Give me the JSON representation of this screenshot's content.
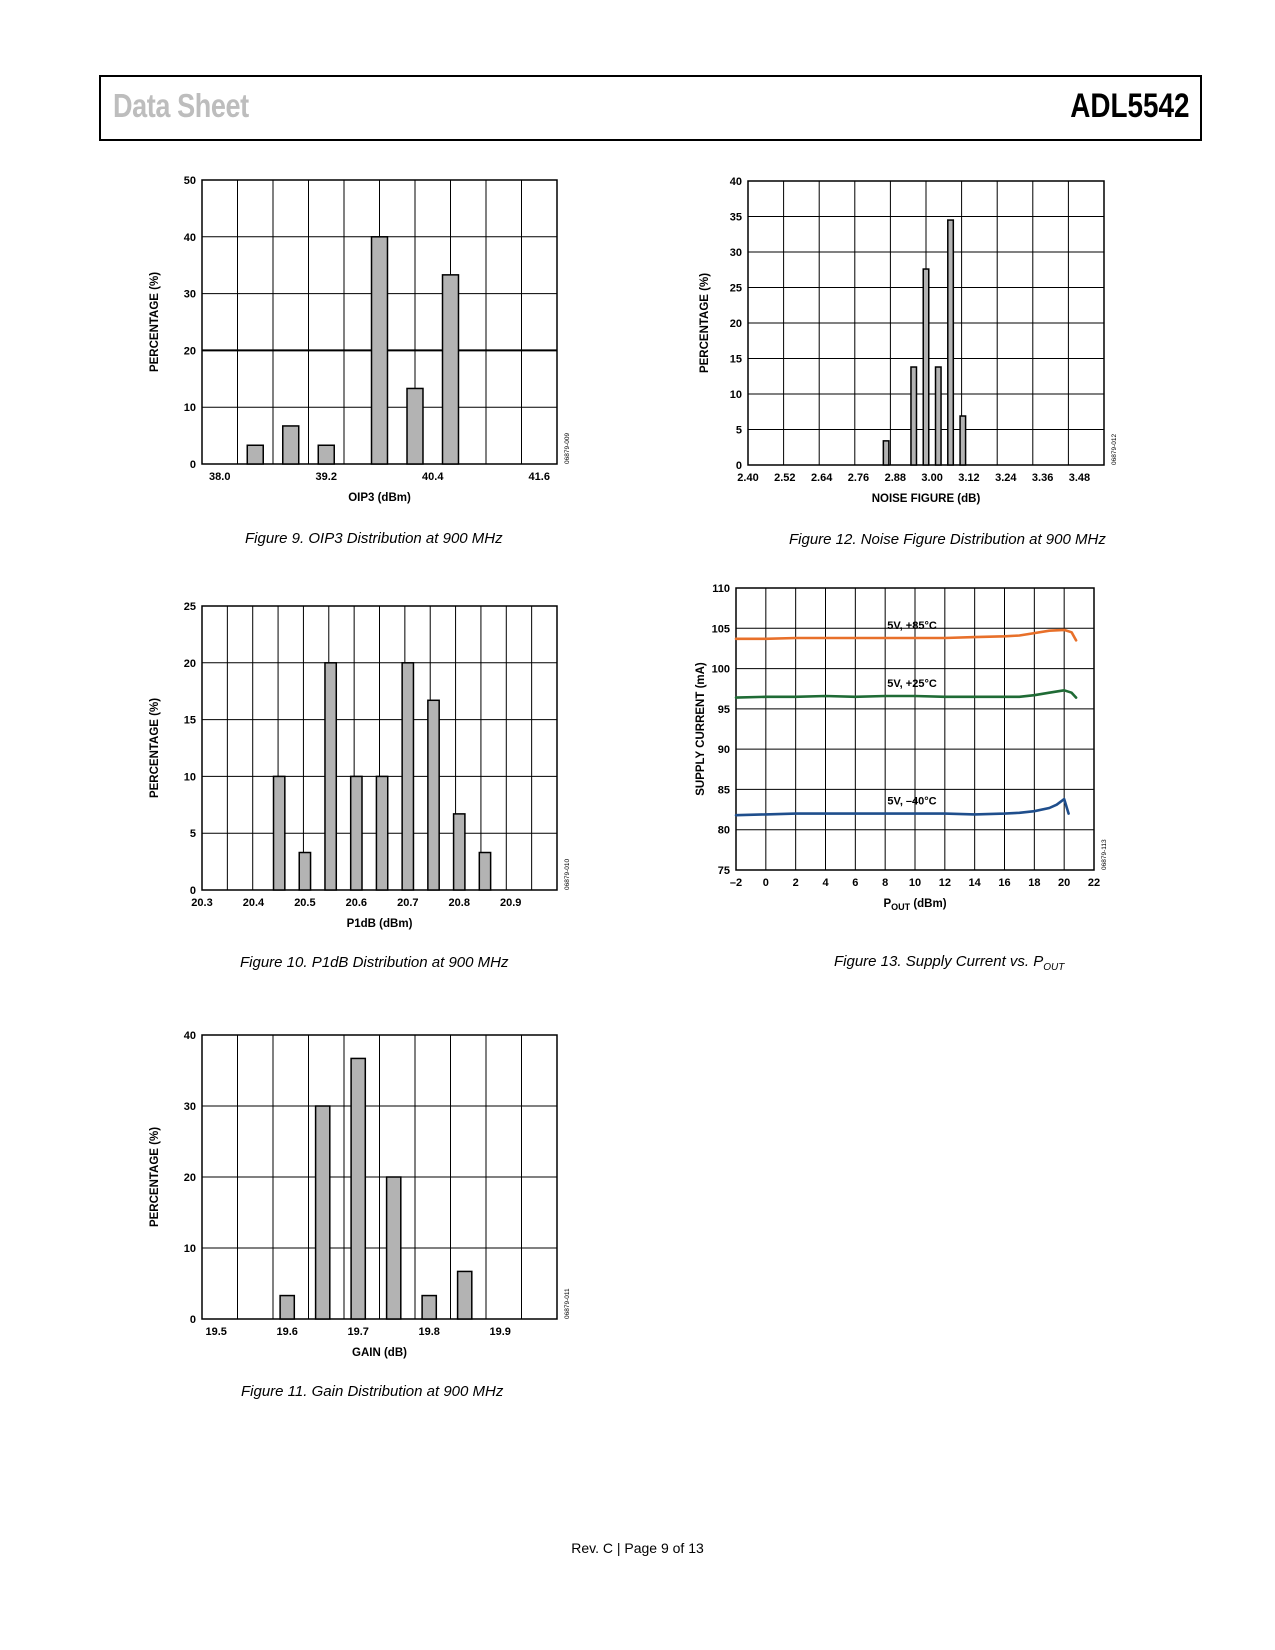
{
  "header": {
    "left_title": "Data Sheet",
    "right_title": "ADL5542"
  },
  "footer": {
    "text": "Rev. C | Page 9 of 13"
  },
  "figures": [
    {
      "caption_prefix": "Figure 9.",
      "caption_text": "OIP3 Distribution at 900 MHz",
      "code": "06879-009"
    },
    {
      "caption_prefix": "Figure 10.",
      "caption_text": "P1dB Distribution at 900 MHz",
      "code": "06879-010"
    },
    {
      "caption_prefix": "Figure 11.",
      "caption_text": "Gain Distribution at 900 MHz",
      "code": "06879-011"
    },
    {
      "caption_prefix": "Figure 12.",
      "caption_text": "Noise Figure Distribution at 900 MHz",
      "code": "06879-012"
    },
    {
      "caption_prefix": "Figure 13.",
      "caption_text": "Supply Current vs. P",
      "caption_sub": "OUT",
      "code": "06879-113"
    }
  ],
  "chart_data": [
    {
      "id": "fig9",
      "type": "bar",
      "xlabel": "OIP3 (dBm)",
      "ylabel": "PERCENTAGE (%)",
      "xlim": [
        37.8,
        41.8
      ],
      "ylim": [
        0,
        50
      ],
      "xticks": [
        "38.0",
        "39.2",
        "40.4",
        "41.6"
      ],
      "xtick_values": [
        38.0,
        39.2,
        40.4,
        41.6
      ],
      "yticks": [
        "0",
        "10",
        "20",
        "30",
        "40",
        "50"
      ],
      "grid": true,
      "x": [
        38.4,
        38.8,
        39.2,
        39.8,
        40.2,
        40.6
      ],
      "values": [
        3.3,
        6.7,
        3.3,
        40.0,
        13.3,
        33.3
      ],
      "bar_width": 0.18
    },
    {
      "id": "fig10",
      "type": "bar",
      "xlabel": "P1dB (dBm)",
      "ylabel": "PERCENTAGE (%)",
      "xlim": [
        20.3,
        20.99
      ],
      "ylim": [
        0,
        25
      ],
      "xticks": [
        "20.3",
        "20.4",
        "20.5",
        "20.6",
        "20.7",
        "20.8",
        "20.9"
      ],
      "xtick_values": [
        20.3,
        20.4,
        20.5,
        20.6,
        20.7,
        20.8,
        20.9
      ],
      "yticks": [
        "0",
        "5",
        "10",
        "15",
        "20",
        "25"
      ],
      "grid": true,
      "x": [
        20.45,
        20.5,
        20.55,
        20.6,
        20.65,
        20.7,
        20.75,
        20.8,
        20.85
      ],
      "values": [
        10.0,
        3.3,
        20.0,
        10.0,
        10.0,
        20.0,
        16.7,
        6.7,
        3.3
      ],
      "bar_width": 0.022
    },
    {
      "id": "fig11",
      "type": "bar",
      "xlabel": "GAIN (dB)",
      "ylabel": "PERCENTAGE (%)",
      "xlim": [
        19.48,
        19.98
      ],
      "ylim": [
        0,
        40
      ],
      "xticks": [
        "19.5",
        "19.6",
        "19.7",
        "19.8",
        "19.9"
      ],
      "xtick_values": [
        19.5,
        19.6,
        19.7,
        19.8,
        19.9
      ],
      "yticks": [
        "0",
        "10",
        "20",
        "30",
        "40"
      ],
      "grid": true,
      "x": [
        19.6,
        19.65,
        19.7,
        19.75,
        19.8,
        19.85
      ],
      "values": [
        3.3,
        30.0,
        36.7,
        20.0,
        3.3,
        6.7
      ],
      "bar_width": 0.02
    },
    {
      "id": "fig12",
      "type": "bar",
      "xlabel": "NOISE FIGURE (dB)",
      "ylabel": "PERCENTAGE (%)",
      "xlim": [
        2.4,
        3.56
      ],
      "ylim": [
        0,
        40
      ],
      "xticks": [
        "2.40",
        "2.52",
        "2.64",
        "2.76",
        "2.88",
        "3.00",
        "3.12",
        "3.24",
        "3.36",
        "3.48"
      ],
      "xtick_values": [
        2.4,
        2.52,
        2.64,
        2.76,
        2.88,
        3.0,
        3.12,
        3.24,
        3.36,
        3.48
      ],
      "yticks": [
        "0",
        "5",
        "10",
        "15",
        "20",
        "25",
        "30",
        "35",
        "40"
      ],
      "grid": true,
      "x": [
        2.85,
        2.94,
        2.98,
        3.02,
        3.06,
        3.1
      ],
      "values": [
        3.4,
        13.8,
        27.6,
        13.8,
        34.5,
        6.9
      ],
      "bar_width": 0.018
    },
    {
      "id": "fig13",
      "type": "line",
      "xlabel": "P",
      "xlabel_sub": "OUT",
      "xlabel_suffix": " (dBm)",
      "ylabel": "SUPPLY CURRENT (mA)",
      "xlim": [
        -2,
        22
      ],
      "ylim": [
        75,
        110
      ],
      "xticks": [
        "–2",
        "0",
        "2",
        "4",
        "6",
        "8",
        "10",
        "12",
        "14",
        "16",
        "18",
        "20",
        "22"
      ],
      "xtick_values": [
        -2,
        0,
        2,
        4,
        6,
        8,
        10,
        12,
        14,
        16,
        18,
        20,
        22
      ],
      "yticks": [
        "75",
        "80",
        "85",
        "90",
        "95",
        "100",
        "105",
        "110"
      ],
      "grid": true,
      "series": [
        {
          "name": "5V, +85°C",
          "color": "#e8702a",
          "x": [
            -2,
            0,
            2,
            4,
            6,
            8,
            10,
            12,
            14,
            16,
            17,
            18,
            19,
            20,
            20.5,
            20.8
          ],
          "y": [
            103.7,
            103.7,
            103.8,
            103.8,
            103.8,
            103.8,
            103.8,
            103.8,
            103.9,
            104.0,
            104.1,
            104.4,
            104.7,
            104.8,
            104.5,
            103.5
          ]
        },
        {
          "name": "5V, +25°C",
          "color": "#1f6b35",
          "x": [
            -2,
            0,
            2,
            4,
            6,
            8,
            10,
            12,
            14,
            16,
            17,
            18,
            19,
            20,
            20.5,
            20.8
          ],
          "y": [
            96.4,
            96.5,
            96.5,
            96.6,
            96.5,
            96.6,
            96.6,
            96.5,
            96.5,
            96.5,
            96.5,
            96.7,
            97.0,
            97.3,
            97.0,
            96.4
          ]
        },
        {
          "name": "5V, –40°C",
          "color": "#1f4e8c",
          "x": [
            -2,
            0,
            2,
            4,
            6,
            8,
            10,
            12,
            14,
            16,
            17,
            18,
            19,
            19.5,
            20,
            20.3
          ],
          "y": [
            81.8,
            81.9,
            82.0,
            82.0,
            82.0,
            82.0,
            82.0,
            82.0,
            81.9,
            82.0,
            82.1,
            82.3,
            82.7,
            83.1,
            83.8,
            82.0
          ]
        }
      ]
    }
  ]
}
